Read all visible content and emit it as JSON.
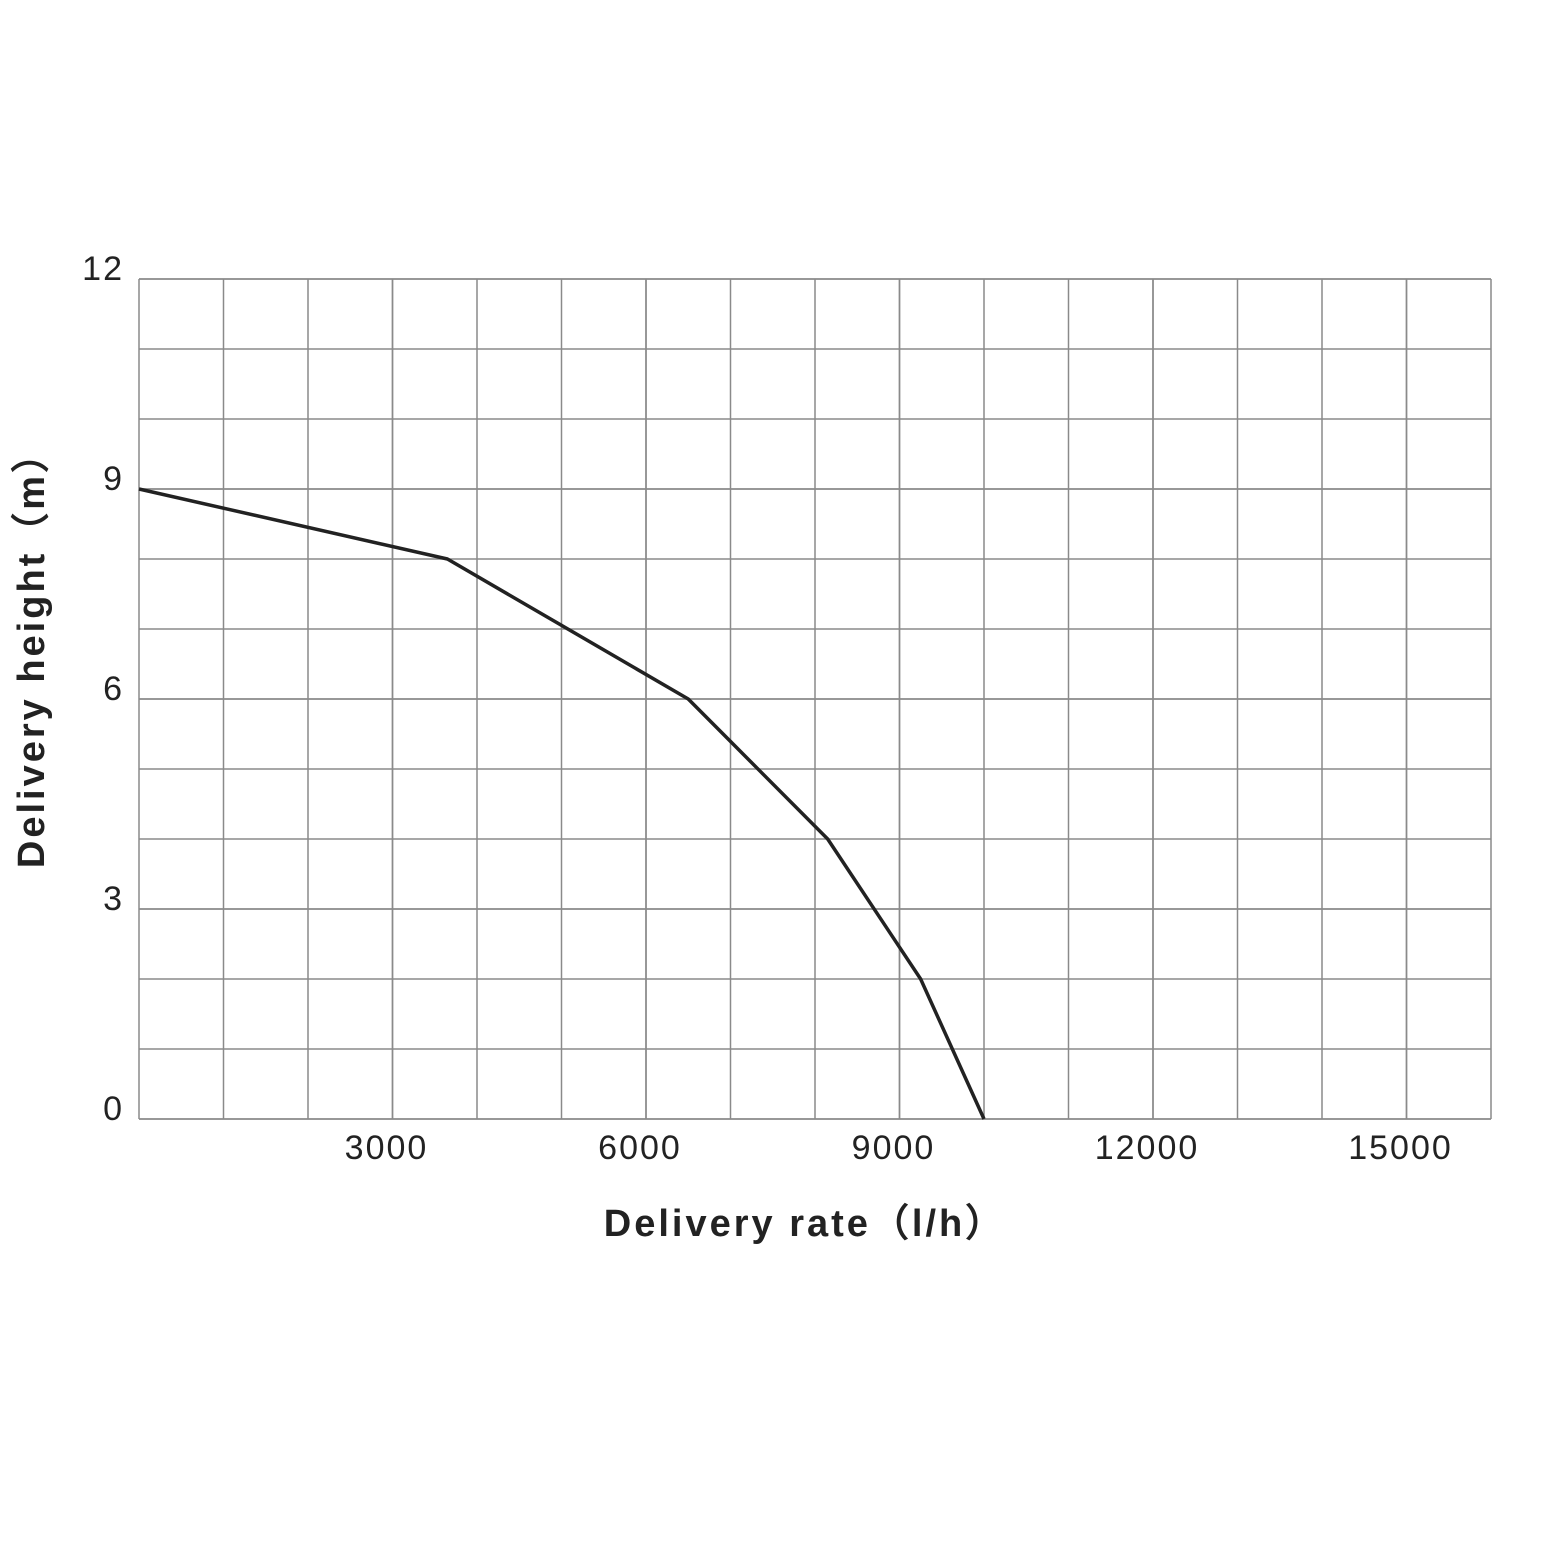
{
  "chart_data": {
    "type": "line",
    "x_label": "Delivery rate（l/h）",
    "y_label": "Delivery height（m）",
    "x": [
      0,
      3650,
      6500,
      8150,
      9250,
      10000
    ],
    "series": [
      {
        "color": "#222222",
        "values": [
          9,
          8,
          6,
          4,
          2,
          0
        ]
      }
    ],
    "xlim": [
      0,
      16000
    ],
    "xticks": [
      3000,
      6000,
      9000,
      12000,
      15000
    ],
    "ylim": [
      0,
      12
    ],
    "yticks": [
      0,
      3,
      6,
      9,
      12
    ],
    "grid": true,
    "minor_grid": true
  }
}
